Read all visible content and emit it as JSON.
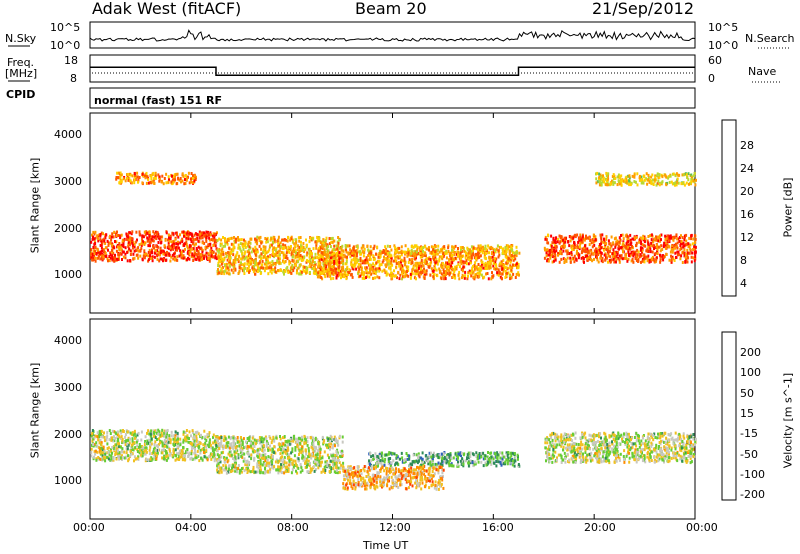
{
  "header": {
    "radar": "Adak West (fitACF)",
    "beam": "Beam 20",
    "date": "21/Sep/2012"
  },
  "noise_panel": {
    "left_label": "N.Sky",
    "right_label": "N.Search",
    "left_ticks": [
      "10^5",
      "10^0"
    ],
    "right_ticks": [
      "10^5",
      "10^0"
    ]
  },
  "freq_panel": {
    "left_label_line1": "Freq.",
    "left_label_line2": "[MHz]",
    "left_ticks": [
      "18",
      "8"
    ],
    "right_label": "Nave",
    "right_ticks": [
      "60",
      "0"
    ]
  },
  "cpid": {
    "label": "CPID",
    "value": "normal (fast) 151 RF"
  },
  "power_panel": {
    "ylabel": "Slant Range [km]",
    "yticks": [
      "4000",
      "3000",
      "2000",
      "1000"
    ],
    "colorbar_label": "Power [dB]",
    "colorbar_ticks": [
      "28",
      "24",
      "20",
      "16",
      "12",
      "8",
      "4"
    ],
    "colors": [
      "#0000ff",
      "#1f3fbf",
      "#2e8b57",
      "#55c055",
      "#b8d830",
      "#ffd000",
      "#ff9d00",
      "#ff5500",
      "#ff0000"
    ]
  },
  "velocity_panel": {
    "ylabel": "Slant Range [km]",
    "yticks": [
      "4000",
      "3000",
      "2000",
      "1000"
    ],
    "colorbar_label": "Velocity [m s^-1]",
    "colorbar_ticks": [
      "200",
      "100",
      "50",
      "15",
      "-15",
      "-50",
      "-100",
      "-200"
    ],
    "colors": [
      "#1a3aa8",
      "#2e5fbf",
      "#2e8b57",
      "#66cc33",
      "#c8c8c0",
      "#f0c020",
      "#ff8c00",
      "#ff4400",
      "#ff0000"
    ],
    "ground_scatter_color": "#c8c8c0"
  },
  "xaxis": {
    "label": "Time UT",
    "ticks": [
      "00:00",
      "04:00",
      "08:00",
      "12:00",
      "16:00",
      "20:00",
      "00:00"
    ]
  },
  "chart_data": [
    {
      "type": "line",
      "title": "Adak West (fitACF) Beam 20 21/Sep/2012",
      "xlabel": "Time UT",
      "ylabel": "Freq. [MHz]",
      "series": [
        {
          "name": "Freq.",
          "x": [
            "00:00",
            "05:00",
            "05:00",
            "17:00",
            "17:00",
            "24:00"
          ],
          "values": [
            13.5,
            13.5,
            10.5,
            10.5,
            13.5,
            13.5
          ]
        }
      ],
      "ylim": [
        8,
        18
      ]
    },
    {
      "type": "heatmap",
      "title": "Power [dB]",
      "xlabel": "Time UT",
      "ylabel": "Slant Range [km]",
      "xlim": [
        "00:00",
        "24:00"
      ],
      "ylim": [
        180,
        4500
      ],
      "colorbar_range": [
        0,
        30
      ],
      "features": [
        {
          "t_start": 0.0,
          "t_end": 5.0,
          "range_center": 1650,
          "range_halfwidth": 320,
          "power": 26
        },
        {
          "t_start": 1.0,
          "t_end": 4.2,
          "range_center": 3120,
          "range_halfwidth": 120,
          "power": 22
        },
        {
          "t_start": 5.0,
          "t_end": 10.0,
          "range_center": 1450,
          "range_halfwidth": 400,
          "power": 20
        },
        {
          "t_start": 9.0,
          "t_end": 17.0,
          "range_center": 1250,
          "range_halfwidth": 300,
          "power": 22
        },
        {
          "t_start": 10.0,
          "t_end": 17.0,
          "range_center": 1580,
          "range_halfwidth": 90,
          "power": 20
        },
        {
          "t_start": 18.0,
          "t_end": 24.0,
          "range_center": 1600,
          "range_halfwidth": 300,
          "power": 25
        },
        {
          "t_start": 20.0,
          "t_end": 24.0,
          "range_center": 3100,
          "range_halfwidth": 130,
          "power": 18
        }
      ]
    },
    {
      "type": "heatmap",
      "title": "Velocity [m s^-1]",
      "xlabel": "Time UT",
      "ylabel": "Slant Range [km]",
      "xlim": [
        "00:00",
        "24:00"
      ],
      "ylim": [
        180,
        4500
      ],
      "colorbar_range": [
        -200,
        200
      ],
      "features": [
        {
          "t_start": 0.0,
          "t_end": 5.0,
          "range_center": 1800,
          "range_halfwidth": 330,
          "velocity": 0
        },
        {
          "t_start": 5.0,
          "t_end": 10.0,
          "range_center": 1600,
          "range_halfwidth": 400,
          "velocity": 0
        },
        {
          "t_start": 11.0,
          "t_end": 17.0,
          "range_center": 1500,
          "range_halfwidth": 150,
          "velocity": 60
        },
        {
          "t_start": 10.0,
          "t_end": 14.0,
          "range_center": 1100,
          "range_halfwidth": 250,
          "velocity": -60
        },
        {
          "t_start": 18.0,
          "t_end": 24.0,
          "range_center": 1750,
          "range_halfwidth": 320,
          "velocity": 0
        }
      ]
    }
  ]
}
